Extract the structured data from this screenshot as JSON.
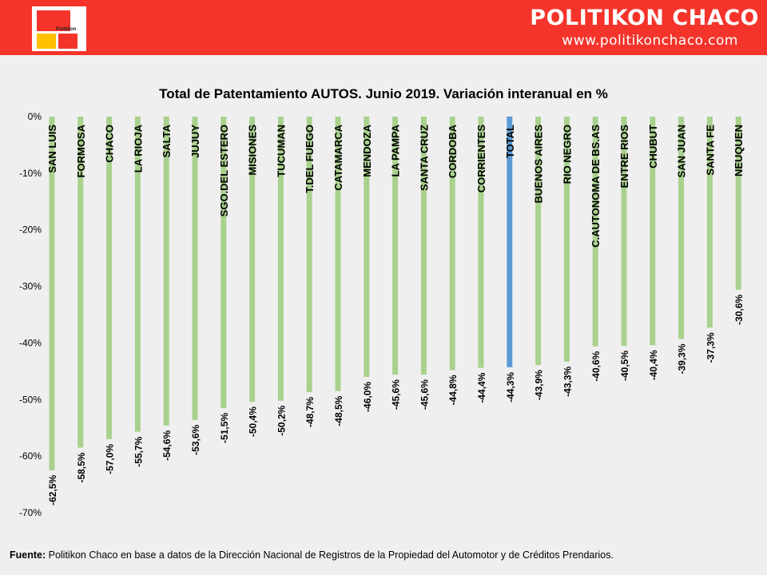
{
  "header": {
    "brand_title": "POLITIKON CHACO",
    "brand_url": "www.politikonchaco.com",
    "logo_text": "Politikon",
    "background_color": "#f4342b"
  },
  "chart_data": {
    "type": "bar",
    "title": "Total de Patentamiento AUTOS. Junio 2019. Variación interanual en %",
    "xlabel": "",
    "ylabel": "",
    "categories": [
      "SAN LUIS",
      "FORMOSA",
      "CHACO",
      "LA RIOJA",
      "SALTA",
      "JUJUY",
      "SGO.DEL ESTERO",
      "MISIONES",
      "TUCUMAN",
      "T.DEL FUEGO",
      "CATAMARCA",
      "MENDOZA",
      "LA PAMPA",
      "SANTA CRUZ",
      "CORDOBA",
      "CORRIENTES",
      "TOTAL",
      "BUENOS AIRES",
      "RIO NEGRO",
      "C.AUTONOMA DE BS.AS",
      "ENTRE RIOS",
      "CHUBUT",
      "SAN JUAN",
      "SANTA FE",
      "NEUQUEN"
    ],
    "values": [
      -62.5,
      -58.5,
      -57.0,
      -55.7,
      -54.6,
      -53.6,
      -51.5,
      -50.4,
      -50.2,
      -48.7,
      -48.5,
      -46.0,
      -45.6,
      -45.6,
      -44.8,
      -44.4,
      -44.3,
      -43.9,
      -43.3,
      -40.6,
      -40.5,
      -40.4,
      -39.3,
      -37.3,
      -30.6
    ],
    "value_labels": [
      "-62,5%",
      "-58,5%",
      "-57,0%",
      "-55,7%",
      "-54,6%",
      "-53,6%",
      "-51,5%",
      "-50,4%",
      "-50,2%",
      "-48,7%",
      "-48,5%",
      "-46,0%",
      "-45,6%",
      "-45,6%",
      "-44,8%",
      "-44,4%",
      "-44,3%",
      "-43,9%",
      "-43,3%",
      "-40,6%",
      "-40,5%",
      "-40,4%",
      "-39,3%",
      "-37,3%",
      "-30,6%"
    ],
    "ylim": [
      -70,
      0
    ],
    "y_ticks": [
      0,
      -10,
      -20,
      -30,
      -40,
      -50,
      -60,
      -70
    ],
    "y_tick_labels": [
      "0%",
      "-10%",
      "-20%",
      "-30%",
      "-40%",
      "-50%",
      "-60%",
      "-70%"
    ],
    "grid": false,
    "legend": "none",
    "bar_color": "#a9d18e",
    "highlight_category": "TOTAL",
    "highlight_color": "#5b9bd5"
  },
  "footer": {
    "label": "Fuente:",
    "text": " Politikon Chaco en base a datos de la Dirección Nacional de Registros de la Propiedad del Automotor y de Créditos Prendarios."
  }
}
